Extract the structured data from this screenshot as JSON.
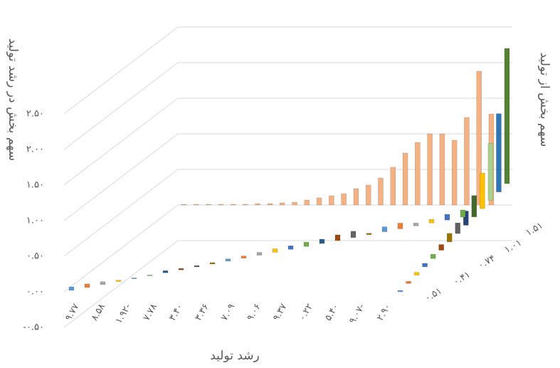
{
  "chart_data": {
    "type": "bar3d",
    "y_title": "سهم بخش در رشد تولید",
    "depth_title": "سهم بخش از تولید",
    "x_title": "رشد تولید",
    "ylim": [
      -0.5,
      2.5
    ],
    "yticks": [
      {
        "value": -0.5,
        "label": "-۰.۵۰"
      },
      {
        "value": 0,
        "label": "۰.۰۰"
      },
      {
        "value": 0.5,
        "label": "۰.۵۰"
      },
      {
        "value": 1,
        "label": "۱.۰۰"
      },
      {
        "value": 1.5,
        "label": "۱.۵۰"
      },
      {
        "value": 2,
        "label": "۲.۰۰"
      },
      {
        "value": 2.5,
        "label": "۲.۵۰"
      }
    ],
    "grid": true,
    "categories": [
      "۹.۷۷",
      null,
      "۸.۵۸",
      null,
      "۱.۹۲-",
      null,
      "۷.۷۸",
      null,
      "۳.۴۰",
      null,
      "۳.۳۶",
      null,
      "۷.۰۹",
      null,
      "۹.۰۶",
      null,
      "۹.۳۷",
      null,
      "۰.۲۲",
      null,
      "۵.۴۰",
      null,
      "۹.۰۷-",
      null,
      "۲.۹۰",
      null
    ],
    "depth_categories": [
      "۰.۵۱",
      "۰.۴۱",
      "۰.۷۴",
      "۱.۰۱",
      "۱.۵۱"
    ],
    "series": [
      {
        "color": "#f4b183",
        "values": [
          0.01,
          0.01,
          0.01,
          0.01,
          0.01,
          0.01,
          0.02,
          0.02,
          0.03,
          0.04,
          0.07,
          0.1,
          0.13,
          0.16,
          0.23,
          0.28,
          0.38,
          0.53,
          0.73,
          0.88,
          1.0,
          1.0,
          0.91,
          1.23,
          1.88,
          1.28
        ]
      },
      {
        "colors": [
          "#5b9bd5",
          "#ed7d31",
          "#a5a5a5",
          "#ffc000",
          "#4472c4",
          "#70ad47",
          "#255e91",
          "#9e480e",
          "#636363",
          "#997300",
          "#5b9bd5",
          "#ed7d31",
          "#a5a5a5",
          "#ffc000",
          "#4472c4",
          "#70ad47",
          "#255e91",
          "#9e480e",
          "#636363",
          "#997300",
          "#5b9bd5",
          "#ed7d31",
          "#a5a5a5",
          "#ffc000",
          "#4472c4",
          "#70ad47"
        ],
        "values": [
          0.05,
          0.05,
          0.04,
          0.02,
          0.01,
          0.01,
          0.03,
          0.02,
          0.02,
          0.02,
          0.03,
          0.03,
          0.04,
          0.05,
          0.05,
          0.06,
          0.06,
          0.08,
          0.09,
          0.02,
          0.07,
          0.08,
          0.04,
          0.05,
          0.08,
          0.1
        ]
      }
    ],
    "depth_series": {
      "colors": [
        "#5b9bd5",
        "#ed7d31",
        "#ffc000",
        "#4472c4",
        "#70ad47",
        "#9e480e",
        "#997300",
        "#636363",
        "#264478",
        "#43682b",
        "#ffc000",
        "#a9d18e",
        "#2e75b6",
        "#548235"
      ],
      "values": [
        0.02,
        0.03,
        0.04,
        0.05,
        0.06,
        0.08,
        0.12,
        0.15,
        0.2,
        0.3,
        0.5,
        0.8,
        1.1,
        1.9
      ]
    }
  }
}
